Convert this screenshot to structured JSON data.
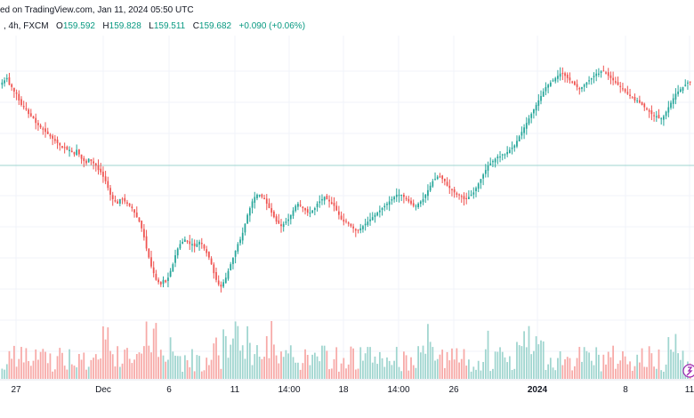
{
  "header": {
    "line1": "ed on TradingView.com, Jan 11, 2024 05:50 UTC",
    "symbol": ", 4h, FXCM",
    "open_label": "O",
    "open": "159.592",
    "high_label": "H",
    "high": "159.828",
    "low_label": "L",
    "low": "159.511",
    "close_label": "C",
    "close": "159.682",
    "change": "+0.090 (+0.06%)"
  },
  "colors": {
    "up": "#26a69a",
    "down": "#ef5350",
    "up_vol": "#9fd5cf",
    "down_vol": "#f7a9a7",
    "price_line": "#9fd5cf"
  },
  "chart_data": {
    "type": "candlestick",
    "timeframe": "4h",
    "exchange": "FXCM",
    "last_close": 159.682,
    "x_ticks": [
      "27",
      "Dec",
      "6",
      "11",
      "14:00",
      "18",
      "14:00",
      "26",
      "2024",
      "8",
      "11"
    ],
    "close_path": [
      160,
      161,
      162,
      159,
      158,
      156,
      155,
      152,
      150,
      149,
      148,
      146,
      145,
      144,
      142,
      141,
      140,
      139,
      138,
      137,
      136,
      135,
      134,
      133,
      132,
      131,
      131,
      130,
      130,
      129,
      128,
      130,
      128,
      126,
      125,
      124,
      126,
      125,
      124,
      123,
      121,
      120,
      118,
      116,
      113,
      110,
      108,
      107,
      106,
      108,
      108,
      107,
      106,
      105,
      104,
      102,
      100,
      98,
      95,
      91,
      86,
      82,
      78,
      75,
      72,
      71,
      70,
      72,
      71,
      73,
      76,
      79,
      83,
      86,
      88,
      89,
      90,
      89,
      88,
      88,
      87,
      88,
      89,
      88,
      86,
      84,
      82,
      79,
      75,
      72,
      70,
      69,
      71,
      73,
      76,
      79,
      82,
      85,
      88,
      90,
      93,
      97,
      101,
      104,
      107,
      109,
      110,
      110,
      109,
      108,
      106,
      104,
      102,
      100,
      98,
      97,
      96,
      97,
      98,
      99,
      101,
      103,
      105,
      106,
      105,
      104,
      103,
      102,
      102,
      103,
      104,
      106,
      107,
      108,
      109,
      108,
      107,
      106,
      105,
      103,
      101,
      99,
      98,
      98,
      97,
      96,
      95,
      94,
      94,
      95,
      96,
      97,
      98,
      99,
      100,
      101,
      102,
      103,
      104,
      105,
      106,
      107,
      108,
      109,
      110,
      110,
      110,
      109,
      108,
      107,
      106,
      105,
      105,
      106,
      107,
      108,
      110,
      112,
      114,
      116,
      117,
      118,
      118,
      117,
      116,
      114,
      113,
      112,
      111,
      110,
      110,
      109,
      108,
      108,
      109,
      110,
      111,
      113,
      115,
      117,
      119,
      121,
      123,
      124,
      125,
      126,
      127,
      127,
      128,
      128,
      129,
      130,
      131,
      132,
      134,
      136,
      138,
      140,
      142,
      144,
      146,
      148,
      150,
      152,
      154,
      156,
      158,
      159,
      160,
      161,
      162,
      163,
      164,
      164,
      163,
      162,
      161,
      160,
      159,
      158,
      157,
      158,
      159,
      160,
      161,
      162,
      163,
      164,
      164,
      165,
      165,
      164,
      163,
      162,
      161,
      160,
      159,
      158,
      157,
      156,
      155,
      154,
      153,
      152,
      152,
      151,
      150,
      149,
      148,
      147,
      146,
      145,
      145,
      144,
      144,
      145,
      147,
      149,
      151,
      153,
      155,
      156,
      157,
      158,
      159,
      160,
      160
    ]
  }
}
